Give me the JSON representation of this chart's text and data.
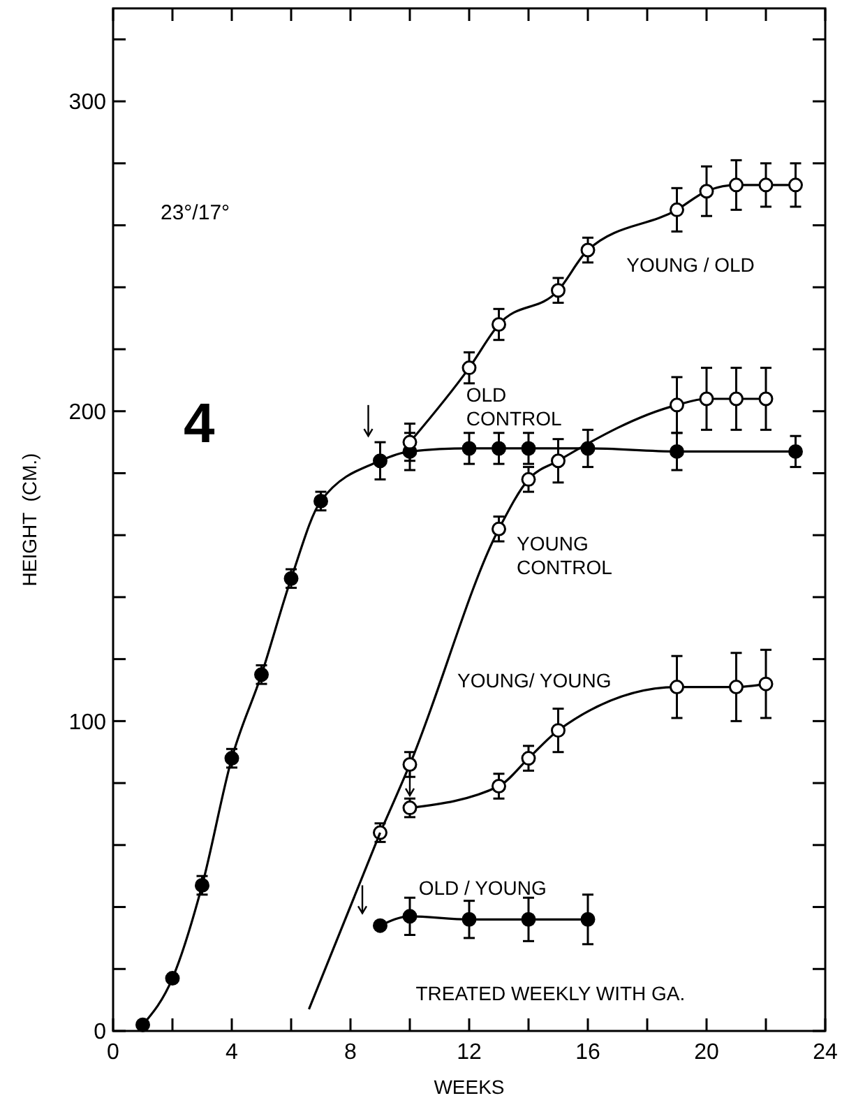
{
  "chart_data": {
    "type": "line",
    "xlabel": "WEEKS",
    "ylabel": "HEIGHT  (CM.)",
    "annotations": [
      "23°/17°",
      "4",
      "TREATED WEEKLY WITH GA."
    ],
    "xlim": [
      0,
      24
    ],
    "ylim": [
      0,
      330
    ],
    "xticks": [
      0,
      {
        "value": 2,
        "label": null
      },
      4,
      {
        "value": 6,
        "label": null
      },
      8,
      {
        "value": 10,
        "label": null
      },
      12,
      {
        "value": 14,
        "label": null
      },
      16,
      {
        "value": 18,
        "label": null
      },
      20,
      {
        "value": 22,
        "label": null
      },
      24
    ],
    "yticks": [
      0,
      {
        "value": 20,
        "label": null
      },
      {
        "value": 40,
        "label": null
      },
      {
        "value": 60,
        "label": null
      },
      {
        "value": 80,
        "label": null
      },
      100,
      {
        "value": 120,
        "label": null
      },
      {
        "value": 140,
        "label": null
      },
      {
        "value": 160,
        "label": null
      },
      {
        "value": 180,
        "label": null
      },
      200,
      {
        "value": 220,
        "label": null
      },
      {
        "value": 240,
        "label": null
      },
      {
        "value": 260,
        "label": null
      },
      {
        "value": 280,
        "label": null
      },
      300,
      {
        "value": 320,
        "label": null
      }
    ],
    "grid": false,
    "legend": false,
    "marker": "circle",
    "line_style": "solid",
    "series": [
      {
        "name": "OLD CONTROL",
        "color": "#000000",
        "x": [
          1,
          2,
          3,
          4,
          5,
          6,
          7,
          9,
          10,
          12,
          13,
          14,
          16,
          19,
          23
        ],
        "values": [
          2,
          17,
          47,
          88,
          115,
          146,
          171,
          184,
          187,
          188,
          188,
          188,
          188,
          187,
          187
        ],
        "errors": [
          null,
          null,
          3,
          3,
          3,
          3,
          3,
          6,
          6,
          5,
          5,
          5,
          6,
          6,
          5
        ]
      },
      {
        "name": "YOUNG / OLD",
        "color": "#ffffff",
        "x": [
          10,
          12,
          13,
          15,
          16,
          19,
          20,
          21,
          22,
          23
        ],
        "values": [
          190,
          214,
          228,
          239,
          252,
          265,
          271,
          273,
          273,
          273
        ],
        "errors": [
          6,
          5,
          5,
          4,
          4,
          7,
          8,
          8,
          7,
          7
        ]
      },
      {
        "name": "YOUNG CONTROL",
        "color": "#ffffff",
        "x": [
          9,
          10,
          13,
          14,
          15,
          19,
          20,
          21,
          22
        ],
        "values": [
          64,
          86,
          162,
          178,
          184,
          202,
          204,
          204,
          204
        ],
        "errors": [
          3,
          4,
          4,
          4,
          7,
          9,
          10,
          10,
          10
        ]
      },
      {
        "color": "#000000",
        "type": "line",
        "marker": "none",
        "x": [
          6.6,
          9
        ],
        "values": [
          7,
          64
        ]
      },
      {
        "name": "YOUNG/ YOUNG",
        "color": "#ffffff",
        "x": [
          10,
          13,
          14,
          15,
          19,
          21,
          22
        ],
        "values": [
          72,
          79,
          88,
          97,
          111,
          111,
          112
        ],
        "errors": [
          3,
          4,
          4,
          7,
          10,
          11,
          11
        ]
      },
      {
        "name": "OLD / YOUNG",
        "color": "#000000",
        "x": [
          9,
          10,
          12,
          14,
          16
        ],
        "values": [
          34,
          37,
          36,
          36,
          36
        ],
        "errors": [
          null,
          6,
          6,
          7,
          8
        ]
      }
    ]
  }
}
